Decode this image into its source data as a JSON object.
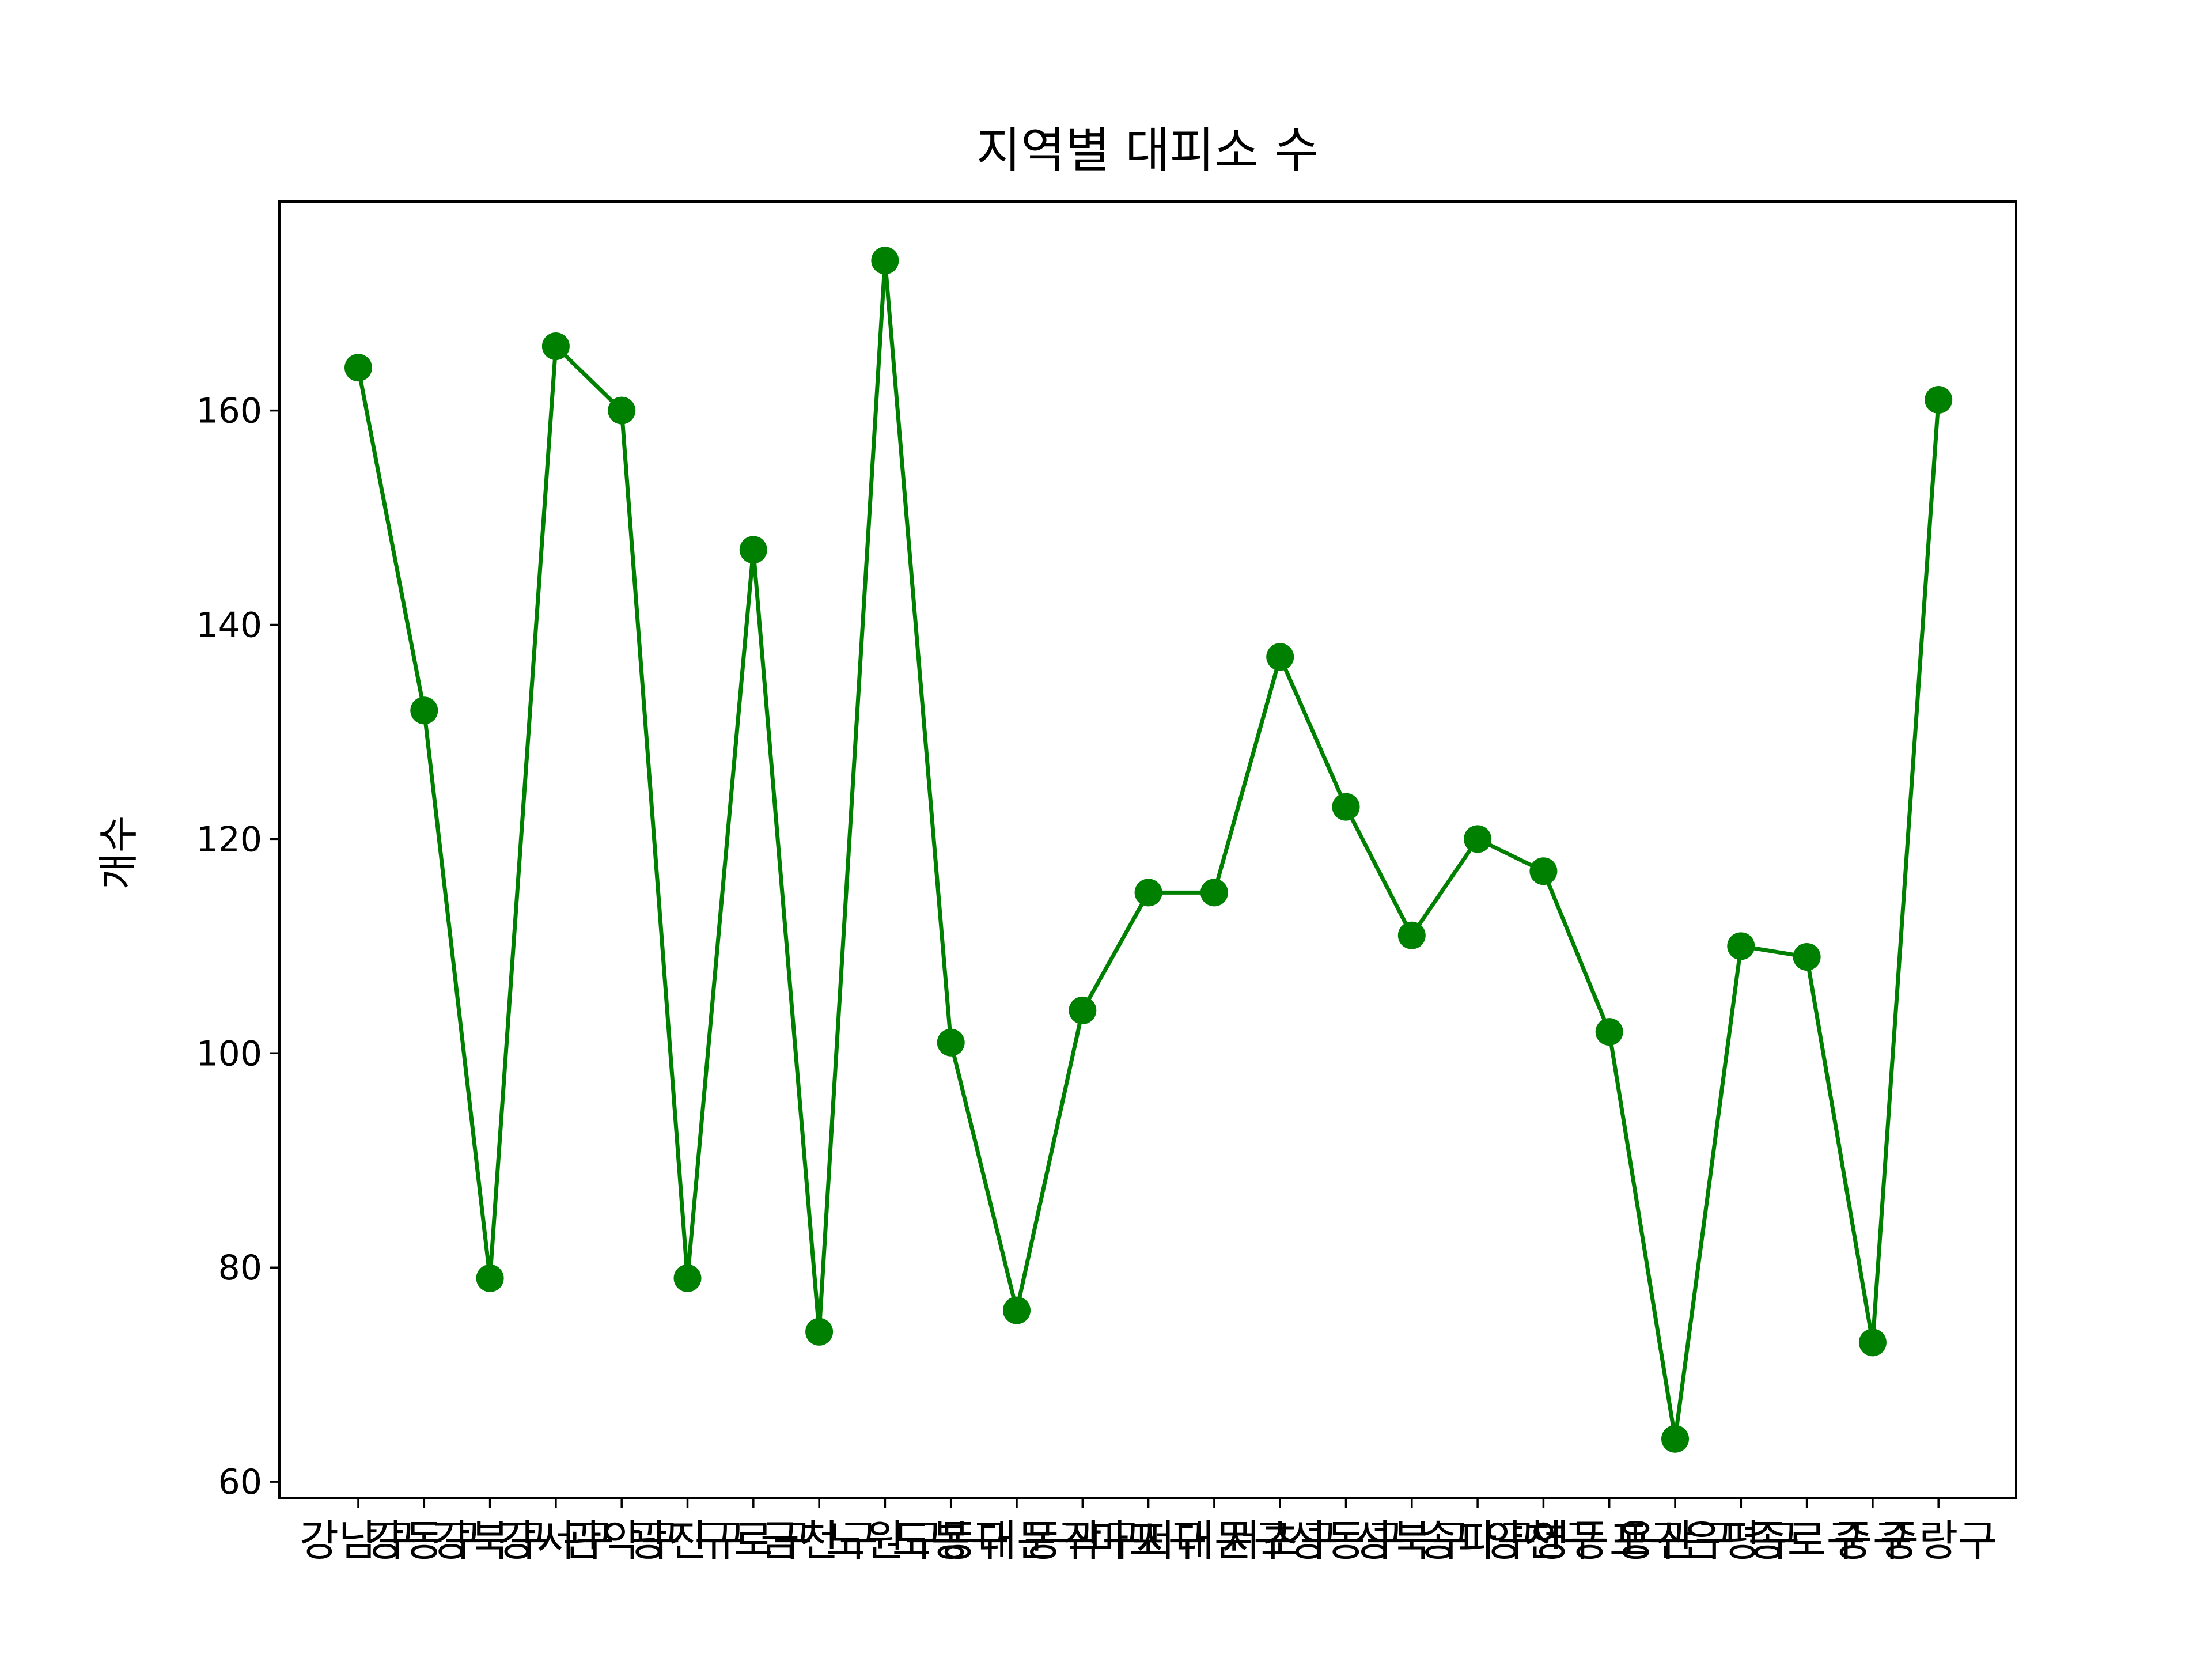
{
  "chart_data": {
    "type": "line",
    "title": "지역별 대피소 수",
    "xlabel": "",
    "ylabel": "개수",
    "categories": [
      "강남구",
      "강동구",
      "강북구",
      "강서구",
      "관악구",
      "광진구",
      "구로구",
      "금천구",
      "노원구",
      "도봉구",
      "동대문구",
      "동작구",
      "마포구",
      "서대문구",
      "서초구",
      "성동구",
      "성북구",
      "송파구",
      "양천구",
      "영등포구",
      "용산구",
      "은평구",
      "종로구",
      "중구",
      "중랑구"
    ],
    "series": [
      {
        "values": [
          164,
          132,
          79,
          166,
          160,
          79,
          147,
          74,
          174,
          101,
          76,
          104,
          115,
          115,
          137,
          123,
          111,
          120,
          117,
          102,
          64,
          110,
          109,
          73,
          161
        ]
      }
    ],
    "yticks": [
      60,
      80,
      100,
      120,
      140,
      160
    ],
    "ylim": [
      58.5,
      179.5
    ],
    "grid": false,
    "legend": "none",
    "colors": {
      "line": "#008000",
      "marker": "#008000",
      "axes": "#000000"
    },
    "marker": "circle"
  }
}
